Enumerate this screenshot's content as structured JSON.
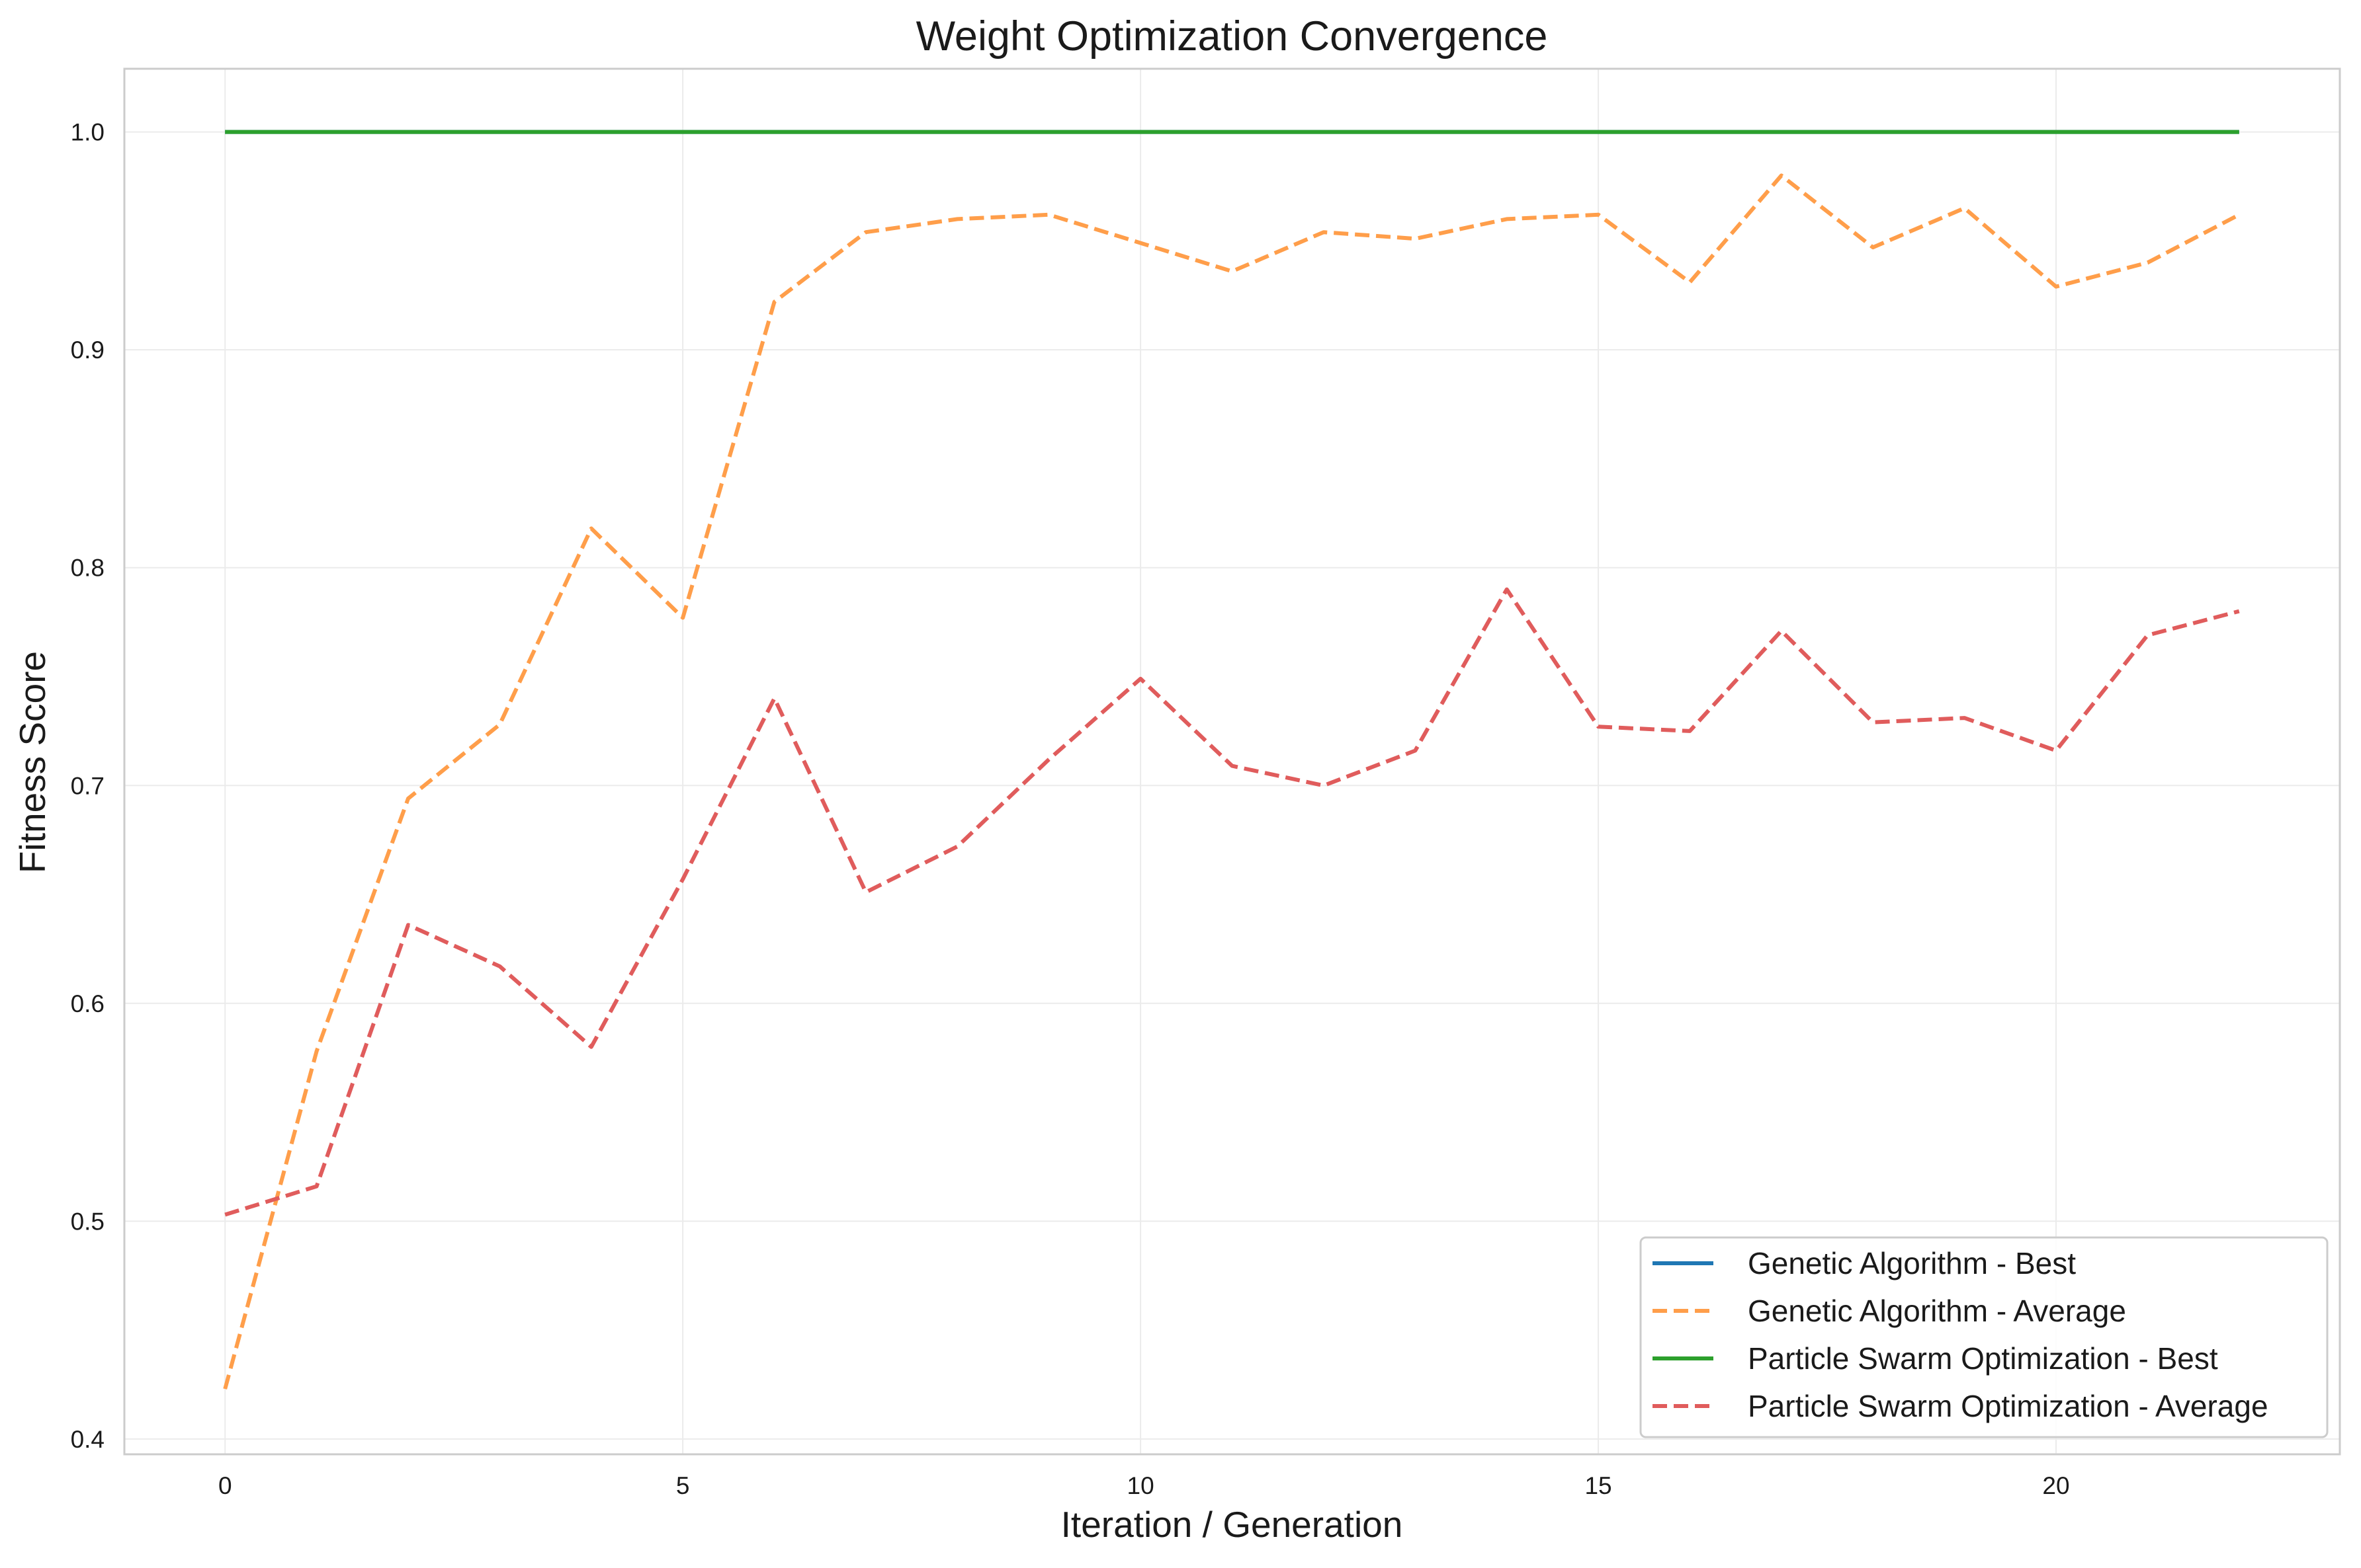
{
  "chart_data": {
    "type": "line",
    "title": "Weight Optimization Convergence",
    "xlabel": "Iteration / Generation",
    "ylabel": "Fitness Score",
    "xlim": [
      -1.1,
      23.1
    ],
    "ylim": [
      0.393,
      1.029
    ],
    "xticks": [
      0,
      5,
      10,
      15,
      20
    ],
    "xtick_labels": [
      "0",
      "5",
      "10",
      "15",
      "20"
    ],
    "yticks": [
      0.4,
      0.5,
      0.6,
      0.7,
      0.8,
      0.9,
      1.0
    ],
    "ytick_labels": [
      "0.4",
      "0.5",
      "0.6",
      "0.7",
      "0.8",
      "0.9",
      "1.0"
    ],
    "grid": true,
    "legend_position": "lower-right",
    "x": [
      0,
      1,
      2,
      3,
      4,
      5,
      6,
      7,
      8,
      9,
      10,
      11,
      12,
      13,
      14,
      15,
      16,
      17,
      18,
      19,
      20,
      21,
      22
    ],
    "series": [
      {
        "name": "Genetic Algorithm - Best",
        "color": "#1f77b4",
        "dash": "solid",
        "values": [
          1.0,
          1.0,
          1.0,
          1.0,
          1.0,
          1.0,
          1.0,
          1.0,
          1.0,
          1.0,
          1.0,
          1.0,
          1.0,
          1.0,
          1.0,
          1.0,
          1.0,
          1.0,
          1.0,
          1.0,
          1.0,
          1.0,
          1.0
        ]
      },
      {
        "name": "Genetic Algorithm - Average",
        "color": "#ff9e4a",
        "dash": "dashed",
        "values": [
          0.423,
          0.578,
          0.694,
          0.728,
          0.818,
          0.777,
          0.922,
          0.954,
          0.96,
          0.962,
          0.949,
          0.936,
          0.954,
          0.951,
          0.96,
          0.962,
          0.931,
          0.98,
          0.947,
          0.965,
          0.929,
          0.94,
          0.962
        ]
      },
      {
        "name": "Particle Swarm Optimization - Best",
        "color": "#2ca02c",
        "dash": "solid",
        "values": [
          1.0,
          1.0,
          1.0,
          1.0,
          1.0,
          1.0,
          1.0,
          1.0,
          1.0,
          1.0,
          1.0,
          1.0,
          1.0,
          1.0,
          1.0,
          1.0,
          1.0,
          1.0,
          1.0,
          1.0,
          1.0,
          1.0,
          1.0
        ]
      },
      {
        "name": "Particle Swarm Optimization - Average",
        "color": "#e05c5c",
        "dash": "dashed",
        "values": [
          0.503,
          0.516,
          0.636,
          0.617,
          0.58,
          0.657,
          0.74,
          0.651,
          0.672,
          0.712,
          0.749,
          0.709,
          0.7,
          0.716,
          0.79,
          0.727,
          0.725,
          0.771,
          0.729,
          0.731,
          0.716,
          0.769,
          0.78
        ]
      }
    ]
  }
}
